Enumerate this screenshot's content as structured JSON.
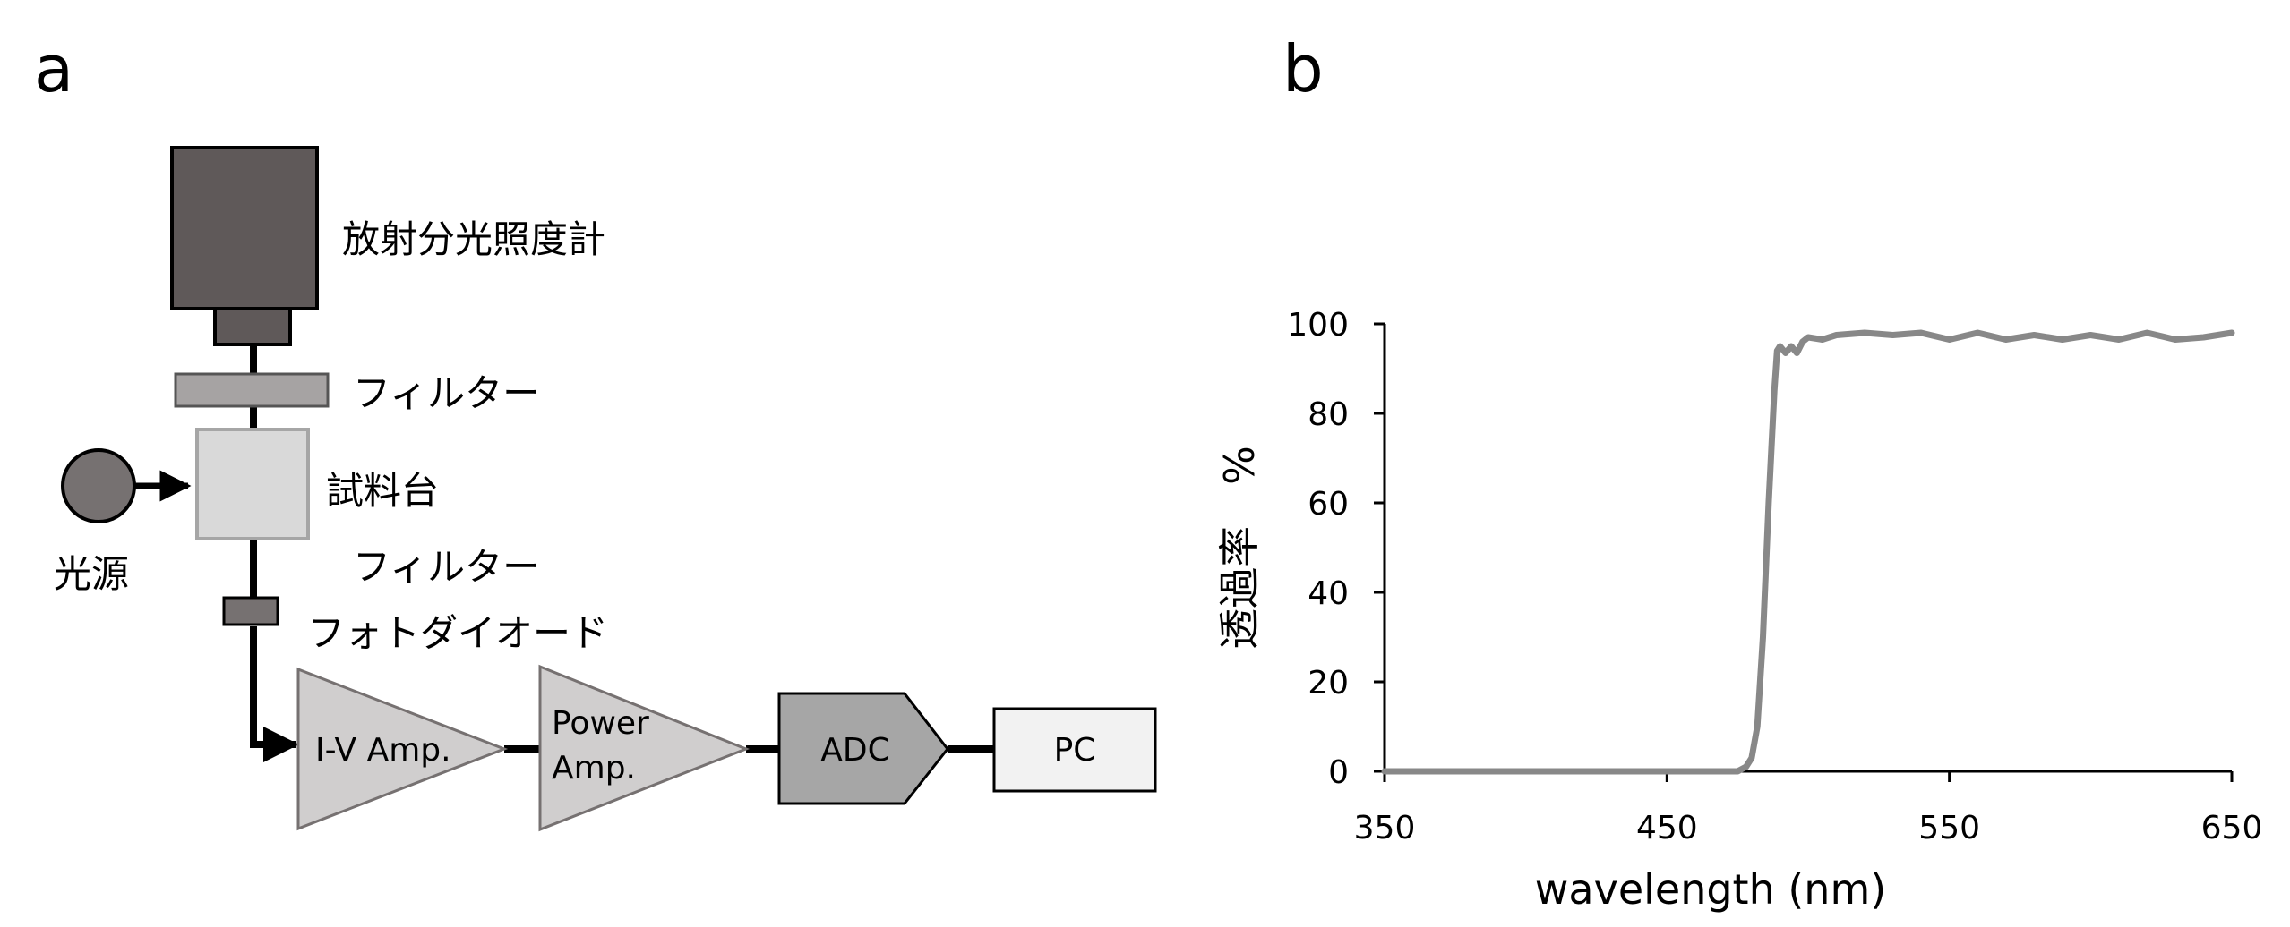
{
  "panel_a": {
    "letter": "a",
    "labels": {
      "spectroradiometer": "放射分光照度計",
      "filter_top": "フィルター",
      "sample_stage": "試料台",
      "light_source": "光源",
      "filter_bottom": "フィルター",
      "photodiode": "フォトダイオード"
    },
    "blocks": {
      "iv_amp": "I-V Amp.",
      "power_amp_line1": "Power",
      "power_amp_line2": "Amp.",
      "adc": "ADC",
      "pc": "PC"
    }
  },
  "panel_b": {
    "letter": "b"
  },
  "chart_data": {
    "type": "line",
    "xlabel": "wavelength (nm)",
    "ylabel": "透過率　%",
    "xlim": [
      350,
      650
    ],
    "ylim": [
      0,
      100
    ],
    "xticks": [
      350,
      450,
      550,
      650
    ],
    "yticks": [
      0,
      20,
      40,
      60,
      80,
      100
    ],
    "grid": false,
    "legend": "none",
    "series": [
      {
        "color": "#888888",
        "x": [
          350,
          400,
          450,
          475,
          478,
          480,
          482,
          484,
          486,
          488,
          489,
          490,
          492,
          494,
          496,
          498,
          500,
          505,
          510,
          520,
          530,
          540,
          550,
          560,
          570,
          580,
          590,
          600,
          610,
          620,
          630,
          640,
          650
        ],
        "y": [
          0,
          0,
          0,
          0,
          1,
          3,
          10,
          30,
          60,
          85,
          94,
          95,
          93.5,
          95,
          93.5,
          96,
          97,
          96.5,
          97.5,
          98,
          97.5,
          98,
          96.5,
          98,
          96.5,
          97.5,
          96.5,
          97.5,
          96.5,
          98,
          96.5,
          97,
          98
        ]
      }
    ]
  }
}
